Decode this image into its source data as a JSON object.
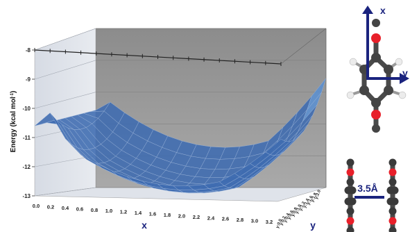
{
  "chart_data": {
    "type": "surface",
    "zlabel_main": "Energy (kcal mol",
    "zlabel_sup": "-1",
    "zlabel_end": ")",
    "zlim": [
      -13,
      -8
    ],
    "z_ticks": [
      "-8",
      "-9",
      "-10",
      "-11",
      "-12",
      "-13"
    ],
    "x_axis_letter": "x",
    "x_ticks": [
      "0.0",
      "0.2",
      "0.4",
      "0.6",
      "0.8",
      "1.0",
      "1.2",
      "1.4",
      "1.6",
      "1.8",
      "2.0",
      "2.2",
      "2.4",
      "2.6",
      "2.8",
      "3.0",
      "3.2"
    ],
    "y_axis_letter": "y",
    "y_ticks": [
      "y:0.0",
      "y:0.2",
      "y:0.4",
      "y:0.6",
      "y:0.8",
      "y:1.0",
      "y:1.2",
      "y:1.4",
      "y:1.6",
      "y:1.8",
      "y:2.0"
    ],
    "surface_color": "#5b8fd0",
    "surface_dark": "#3d6bb0",
    "grid": true
  },
  "inset": {
    "axis_x_letter": "x",
    "axis_y_letter": "y",
    "distance_label": "3.5Å",
    "arrow_color": "#1a237e",
    "oxygen_color": "#e8202a",
    "carbon_color": "#3a3a3a",
    "hydrogen_color": "#e0e0e0"
  }
}
